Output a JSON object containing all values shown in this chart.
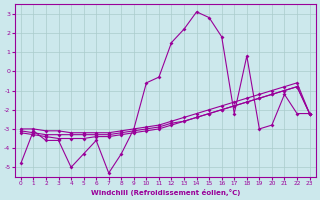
{
  "xlabel": "Windchill (Refroidissement éolien,°C)",
  "x": [
    0,
    1,
    2,
    3,
    4,
    5,
    6,
    7,
    8,
    9,
    10,
    11,
    12,
    13,
    14,
    15,
    16,
    17,
    18,
    19,
    20,
    21,
    22,
    23
  ],
  "line_jagged": [
    -4.8,
    -3.1,
    -3.6,
    -3.6,
    -5.0,
    -4.3,
    -3.6,
    -5.3,
    -4.3,
    -3.0,
    -0.6,
    -0.3,
    1.5,
    2.2,
    3.1,
    2.8,
    1.8,
    -2.2,
    0.8,
    -3.0,
    -2.8,
    -1.2,
    -2.2,
    -2.2
  ],
  "line_a": [
    -3.1,
    -3.2,
    -3.3,
    -3.3,
    -3.3,
    -3.3,
    -3.3,
    -3.3,
    -3.2,
    -3.1,
    -3.0,
    -2.9,
    -2.7,
    -2.6,
    -2.4,
    -2.2,
    -2.0,
    -1.8,
    -1.6,
    -1.4,
    -1.2,
    -1.0,
    -0.8,
    -2.2
  ],
  "line_b": [
    -3.0,
    -3.0,
    -3.1,
    -3.1,
    -3.2,
    -3.2,
    -3.2,
    -3.2,
    -3.1,
    -3.0,
    -2.9,
    -2.8,
    -2.6,
    -2.4,
    -2.2,
    -2.0,
    -1.8,
    -1.6,
    -1.4,
    -1.2,
    -1.0,
    -0.8,
    -0.6,
    -2.2
  ],
  "line_c": [
    -3.2,
    -3.3,
    -3.4,
    -3.5,
    -3.5,
    -3.5,
    -3.4,
    -3.4,
    -3.3,
    -3.2,
    -3.1,
    -3.0,
    -2.8,
    -2.6,
    -2.4,
    -2.2,
    -2.0,
    -1.8,
    -1.6,
    -1.4,
    -1.2,
    -1.0,
    -0.8,
    -2.2
  ],
  "ylim": [
    -5.5,
    3.5
  ],
  "xlim": [
    -0.5,
    23.5
  ],
  "color": "#990099",
  "bg_color": "#cce8ec",
  "grid_color": "#aacccc"
}
